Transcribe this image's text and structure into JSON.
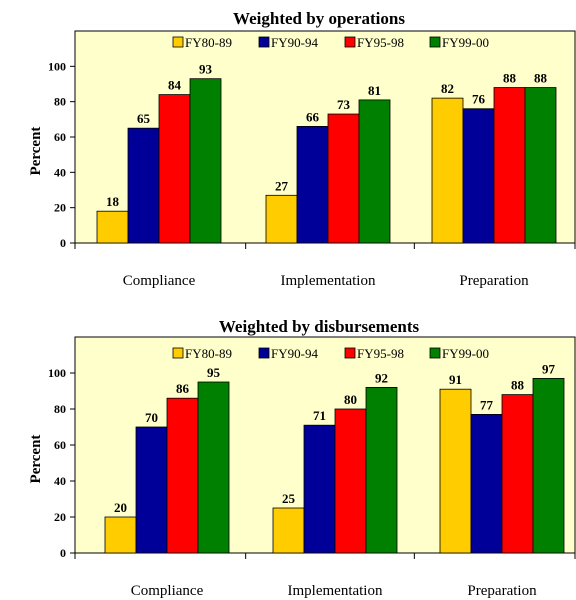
{
  "chart_data": [
    {
      "type": "bar",
      "title": "Weighted by operations",
      "xlabel": "",
      "ylabel": "Percent",
      "ylim": [
        0,
        120
      ],
      "yticks": [
        0,
        20,
        40,
        60,
        80,
        100
      ],
      "categories": [
        "Compliance",
        "Implementation",
        "Preparation"
      ],
      "series": [
        {
          "name": "FY80-89",
          "color": "#FFCC00",
          "values": [
            18,
            27,
            82
          ]
        },
        {
          "name": "FY90-94",
          "color": "#000099",
          "values": [
            65,
            66,
            76
          ]
        },
        {
          "name": "FY95-98",
          "color": "#FF0000",
          "values": [
            84,
            73,
            88
          ]
        },
        {
          "name": "FY99-00",
          "color": "#008000",
          "values": [
            93,
            81,
            88
          ]
        }
      ],
      "legend": "top",
      "grid": false,
      "plot_background": "#FFFFCC"
    },
    {
      "type": "bar",
      "title": "Weighted by disbursements",
      "xlabel": "",
      "ylabel": "Percent",
      "ylim": [
        0,
        120
      ],
      "yticks": [
        0,
        20,
        40,
        60,
        80,
        100
      ],
      "categories": [
        "Compliance",
        "Implementation",
        "Preparation"
      ],
      "series": [
        {
          "name": "FY80-89",
          "color": "#FFCC00",
          "values": [
            20,
            25,
            91
          ]
        },
        {
          "name": "FY90-94",
          "color": "#000099",
          "values": [
            70,
            71,
            77
          ]
        },
        {
          "name": "FY95-98",
          "color": "#FF0000",
          "values": [
            86,
            80,
            88
          ]
        },
        {
          "name": "FY99-00",
          "color": "#008000",
          "values": [
            95,
            92,
            97
          ]
        }
      ],
      "legend": "top",
      "grid": false,
      "plot_background": "#FFFFCC"
    }
  ]
}
